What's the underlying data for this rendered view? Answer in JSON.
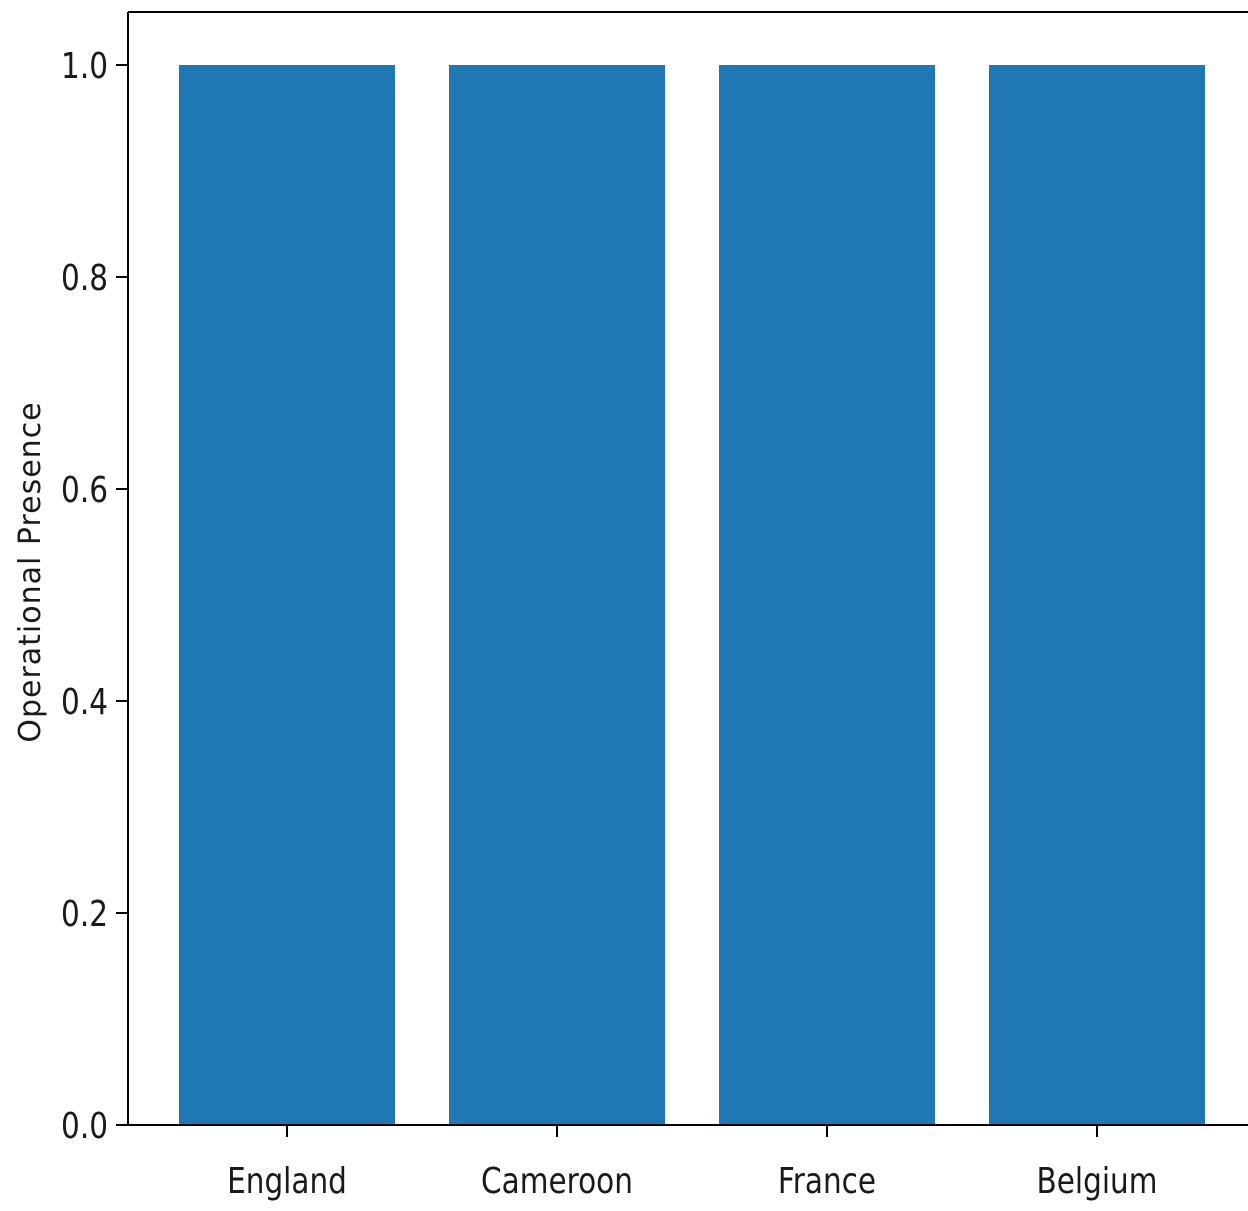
{
  "chart_data": {
    "type": "bar",
    "title": "",
    "xlabel": "",
    "ylabel": "Operational Presence",
    "categories": [
      "England",
      "Cameroon",
      "France",
      "Belgium"
    ],
    "values": [
      1.0,
      1.0,
      1.0,
      1.0
    ],
    "ylim": [
      0,
      1.05
    ],
    "yticks": [
      "0.0",
      "0.2",
      "0.4",
      "0.6",
      "0.8",
      "1.0"
    ],
    "grid": false,
    "legend": "none",
    "bar_color": "#1f77b4"
  }
}
